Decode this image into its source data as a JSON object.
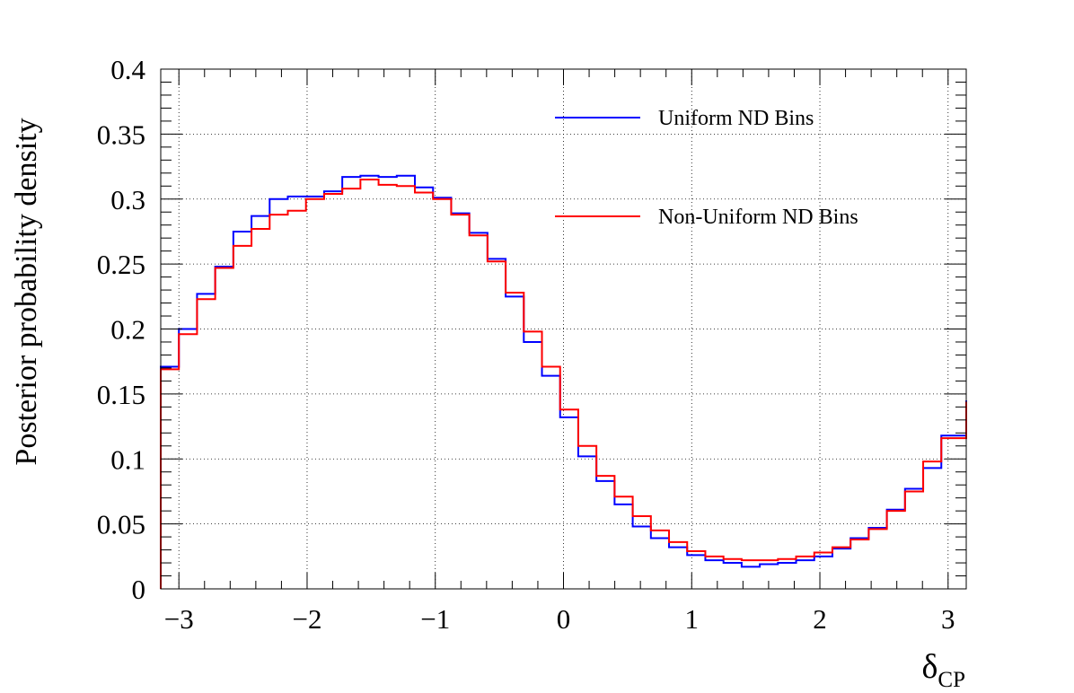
{
  "chart_data": {
    "type": "line",
    "drawstyle": "step",
    "title": "",
    "xlabel_main": "δ",
    "xlabel_sub": "CP",
    "ylabel": "Posterior probability density",
    "xlim": [
      -3.14159,
      3.14159
    ],
    "ylim": [
      0,
      0.4
    ],
    "grid": true,
    "legend_position": "top-right",
    "xticks": [
      -3,
      -2,
      -1,
      0,
      1,
      2,
      3
    ],
    "xtick_labels": [
      "−3",
      "−2",
      "−1",
      "0",
      "1",
      "2",
      "3"
    ],
    "yticks": [
      0,
      0.05,
      0.1,
      0.15,
      0.2,
      0.25,
      0.3,
      0.35,
      0.4
    ],
    "ytick_labels": [
      "0",
      "0.05",
      "0.1",
      "0.15",
      "0.2",
      "0.25",
      "0.3",
      "0.35",
      "0.4"
    ],
    "bin_edges": [
      -3.1416,
      -3.0,
      -2.8584,
      -2.7168,
      -2.5752,
      -2.4336,
      -2.292,
      -2.1504,
      -2.0088,
      -1.8672,
      -1.7256,
      -1.584,
      -1.4424,
      -1.3008,
      -1.1592,
      -1.0176,
      -0.876,
      -0.7344,
      -0.5928,
      -0.4512,
      -0.3096,
      -0.168,
      -0.0264,
      0.1152,
      0.2568,
      0.3984,
      0.54,
      0.6816,
      0.8232,
      0.9648,
      1.1064,
      1.248,
      1.3896,
      1.5312,
      1.6728,
      1.8144,
      1.956,
      2.0976,
      2.2392,
      2.3808,
      2.5224,
      2.664,
      2.8056,
      2.9472,
      3.1416
    ],
    "series": [
      {
        "name": "Uniform ND Bins",
        "color": "#0000ff",
        "values": [
          0.171,
          0.2,
          0.227,
          0.248,
          0.275,
          0.287,
          0.3,
          0.302,
          0.302,
          0.306,
          0.317,
          0.318,
          0.317,
          0.318,
          0.309,
          0.301,
          0.289,
          0.274,
          0.254,
          0.225,
          0.19,
          0.164,
          0.132,
          0.102,
          0.083,
          0.065,
          0.048,
          0.039,
          0.032,
          0.026,
          0.022,
          0.02,
          0.017,
          0.019,
          0.02,
          0.022,
          0.025,
          0.031,
          0.039,
          0.047,
          0.061,
          0.077,
          0.093,
          0.118,
          0.145
        ]
      },
      {
        "name": "Non-Uniform ND Bins",
        "color": "#ff0000",
        "values": [
          0.169,
          0.196,
          0.223,
          0.247,
          0.264,
          0.277,
          0.288,
          0.291,
          0.3,
          0.304,
          0.308,
          0.315,
          0.311,
          0.31,
          0.305,
          0.3,
          0.288,
          0.272,
          0.252,
          0.228,
          0.198,
          0.171,
          0.138,
          0.11,
          0.087,
          0.071,
          0.056,
          0.045,
          0.036,
          0.029,
          0.025,
          0.023,
          0.022,
          0.022,
          0.023,
          0.025,
          0.028,
          0.032,
          0.038,
          0.046,
          0.06,
          0.075,
          0.098,
          0.116,
          0.144
        ]
      }
    ]
  }
}
